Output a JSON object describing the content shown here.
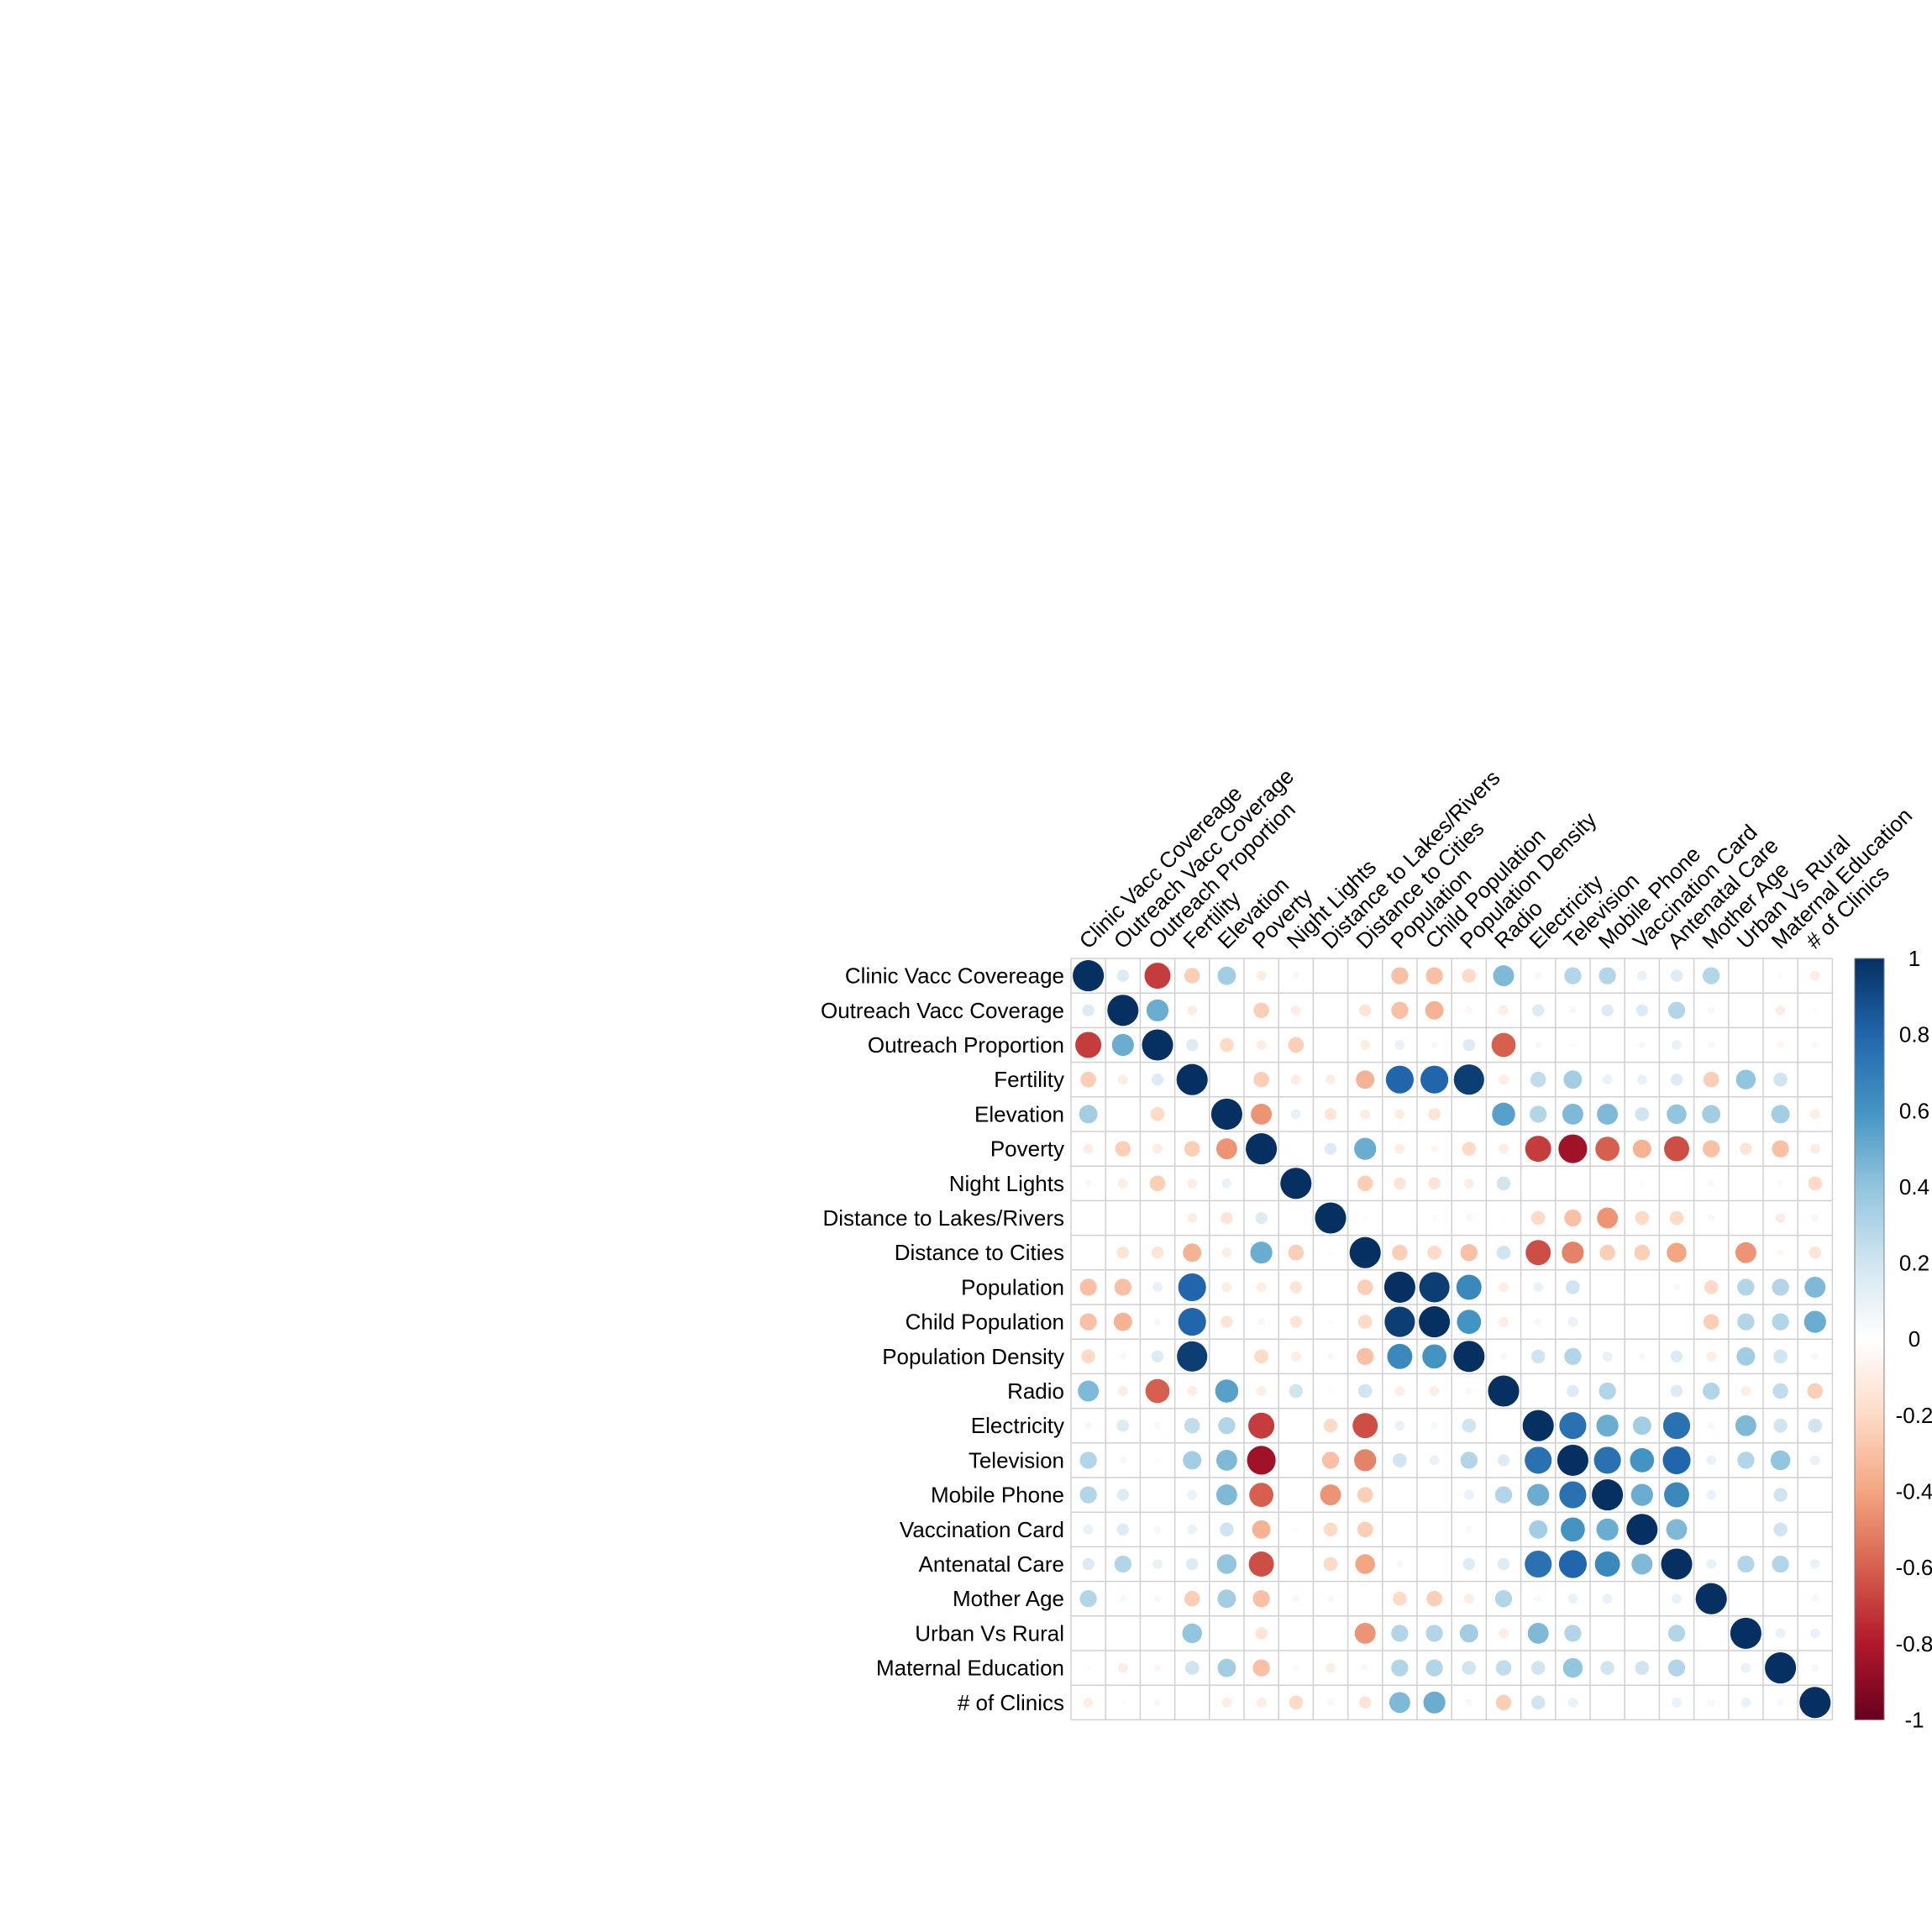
{
  "chart_data": {
    "type": "heatmap",
    "variables": [
      "Clinic Vacc Covereage",
      "Outreach Vacc Coverage",
      "Outreach Proportion",
      "Fertility",
      "Elevation",
      "Poverty",
      "Night Lights",
      "Distance to Lakes/Rivers",
      "Distance to Cities",
      "Population",
      "Child Population",
      "Population Density",
      "Radio",
      "Electricity",
      "Television",
      "Mobile Phone",
      "Vaccination Card",
      "Antenatal Care",
      "Mother Age",
      "Urban Vs Rural",
      "Maternal Education",
      "# of Clinics"
    ],
    "matrix": [
      [
        1,
        0.15,
        -0.7,
        -0.25,
        0.35,
        -0.1,
        0.05,
        0,
        0,
        -0.3,
        -0.3,
        -0.2,
        0.45,
        0.05,
        0.3,
        0.3,
        0.1,
        0.15,
        0.3,
        0,
        0.03,
        -0.1
      ],
      [
        0.15,
        1,
        0.5,
        -0.1,
        0,
        -0.25,
        -0.1,
        0,
        -0.15,
        -0.3,
        -0.35,
        -0.05,
        -0.1,
        0.15,
        0.05,
        0.15,
        0.15,
        0.3,
        0.05,
        0,
        -0.1,
        -0.02
      ],
      [
        -0.7,
        0.5,
        1,
        0.15,
        -0.2,
        -0.1,
        -0.25,
        0,
        -0.1,
        0.1,
        0.05,
        0.15,
        -0.6,
        0.05,
        -0.03,
        0,
        0.05,
        0.1,
        -0.05,
        0,
        -0.05,
        0.05
      ],
      [
        -0.25,
        -0.1,
        0.15,
        1,
        0,
        -0.25,
        -0.1,
        -0.1,
        -0.35,
        0.8,
        0.8,
        0.95,
        -0.1,
        0.25,
        0.35,
        0.1,
        0.1,
        0.15,
        -0.25,
        0.4,
        0.2,
        0
      ],
      [
        0.35,
        0,
        -0.2,
        0,
        1,
        -0.45,
        0.1,
        -0.15,
        -0.1,
        -0.1,
        -0.15,
        0,
        0.55,
        0.3,
        0.45,
        0.45,
        0.2,
        0.4,
        0.35,
        0,
        0.35,
        -0.1
      ],
      [
        -0.1,
        -0.25,
        -0.1,
        -0.25,
        -0.45,
        1,
        0,
        0.15,
        0.5,
        -0.1,
        -0.05,
        -0.2,
        -0.1,
        -0.7,
        -0.85,
        -0.6,
        -0.35,
        -0.65,
        -0.3,
        -0.15,
        -0.3,
        -0.1
      ],
      [
        0.05,
        -0.1,
        -0.25,
        -0.1,
        0.1,
        0,
        1,
        0,
        -0.25,
        -0.15,
        -0.15,
        -0.1,
        0.2,
        0,
        0,
        0,
        0.02,
        0,
        0.05,
        0,
        0.03,
        -0.2
      ],
      [
        0,
        0,
        0,
        -0.1,
        -0.15,
        0.15,
        0,
        1,
        0.02,
        0,
        0.03,
        -0.05,
        -0.02,
        -0.2,
        -0.3,
        -0.45,
        -0.2,
        -0.2,
        0.05,
        0,
        -0.1,
        0.05
      ],
      [
        0,
        -0.15,
        -0.15,
        -0.35,
        -0.1,
        0.5,
        -0.25,
        0.02,
        1,
        -0.25,
        -0.2,
        -0.3,
        0.2,
        -0.65,
        -0.5,
        -0.25,
        -0.25,
        -0.4,
        0,
        -0.45,
        -0.05,
        -0.15
      ],
      [
        -0.3,
        -0.3,
        0.1,
        0.8,
        -0.1,
        -0.1,
        -0.15,
        0,
        -0.25,
        1,
        0.95,
        0.65,
        -0.1,
        0.1,
        0.2,
        0,
        0,
        0.05,
        -0.2,
        0.3,
        0.3,
        0.45
      ],
      [
        -0.3,
        -0.35,
        0.05,
        0.8,
        -0.15,
        -0.05,
        -0.15,
        0.03,
        -0.2,
        0.95,
        1,
        0.6,
        -0.1,
        0.05,
        0.1,
        0,
        0,
        0,
        -0.25,
        0.3,
        0.3,
        0.5
      ],
      [
        -0.2,
        -0.05,
        0.15,
        0.95,
        0,
        -0.2,
        -0.1,
        -0.05,
        -0.3,
        0.65,
        0.6,
        1,
        -0.05,
        0.2,
        0.3,
        0.1,
        0.05,
        0.15,
        -0.1,
        0.35,
        0.2,
        -0.05
      ],
      [
        0.45,
        -0.1,
        -0.6,
        -0.1,
        0.55,
        -0.1,
        0.2,
        -0.02,
        0.2,
        -0.1,
        -0.1,
        -0.05,
        1,
        0,
        0.15,
        0.3,
        0,
        0.15,
        0.3,
        -0.1,
        0.25,
        -0.25
      ],
      [
        0.05,
        0.15,
        0.05,
        0.25,
        0.3,
        -0.7,
        0,
        -0.2,
        -0.65,
        0.1,
        0.05,
        0.2,
        0,
        1,
        0.75,
        0.5,
        0.35,
        0.75,
        0.05,
        0.45,
        0.2,
        0.2
      ],
      [
        0.3,
        0.05,
        -0.03,
        0.35,
        0.45,
        -0.85,
        0,
        -0.3,
        -0.5,
        0.2,
        0.1,
        0.3,
        0.15,
        0.75,
        1,
        0.75,
        0.6,
        0.8,
        0.1,
        0.3,
        0.4,
        0.1
      ],
      [
        0.3,
        0.15,
        0,
        0.1,
        0.45,
        -0.6,
        0,
        -0.45,
        -0.25,
        0,
        0,
        0.1,
        0.3,
        0.5,
        0.75,
        1,
        0.5,
        0.65,
        0.1,
        0,
        0.2,
        0
      ],
      [
        0.1,
        0.15,
        0.05,
        0.1,
        0.2,
        -0.35,
        0.02,
        -0.2,
        -0.25,
        0,
        0,
        0.05,
        0,
        0.35,
        0.6,
        0.5,
        1,
        0.45,
        0,
        0,
        0.2,
        0
      ],
      [
        0.15,
        0.3,
        0.1,
        0.15,
        0.4,
        -0.65,
        0,
        -0.2,
        -0.4,
        0.05,
        0,
        0.15,
        0.15,
        0.75,
        0.8,
        0.65,
        0.45,
        1,
        0.1,
        0.3,
        0.3,
        0.1
      ],
      [
        0.3,
        0.05,
        -0.05,
        -0.25,
        0.35,
        -0.3,
        0.05,
        0.05,
        0,
        -0.2,
        -0.25,
        -0.1,
        0.3,
        0.05,
        0.1,
        0.1,
        0,
        0.1,
        1,
        0,
        0,
        -0.05
      ],
      [
        0,
        0,
        0,
        0.4,
        0,
        -0.15,
        0,
        0,
        -0.45,
        0.3,
        0.3,
        0.35,
        -0.1,
        0.45,
        0.3,
        0,
        0,
        0.3,
        0,
        1,
        0.1,
        0.1
      ],
      [
        0.03,
        -0.1,
        -0.05,
        0.2,
        0.35,
        -0.3,
        0.03,
        -0.1,
        -0.05,
        0.3,
        0.3,
        0.2,
        0.25,
        0.2,
        0.4,
        0.2,
        0.2,
        0.3,
        0,
        0.1,
        1,
        0.05
      ],
      [
        -0.1,
        -0.02,
        0.05,
        0,
        -0.1,
        -0.1,
        -0.2,
        0.05,
        -0.15,
        0.45,
        0.5,
        -0.05,
        -0.25,
        0.2,
        0.1,
        0,
        0,
        0.1,
        -0.05,
        0.1,
        0.05,
        1
      ]
    ],
    "color_scale": {
      "min": -1,
      "max": 1,
      "ticks": [
        "1",
        "0.8",
        "0.6",
        "0.4",
        "0.2",
        "0",
        "-0.2",
        "-0.4",
        "-0.6",
        "-0.8",
        "-1"
      ],
      "colors": [
        "#67001F",
        "#B2182B",
        "#D6604D",
        "#F4A582",
        "#FDDBC7",
        "#FFFFFF",
        "#D1E5F0",
        "#92C5DE",
        "#4393C3",
        "#2166AC",
        "#053061"
      ]
    },
    "grid": true,
    "legend": "right"
  }
}
